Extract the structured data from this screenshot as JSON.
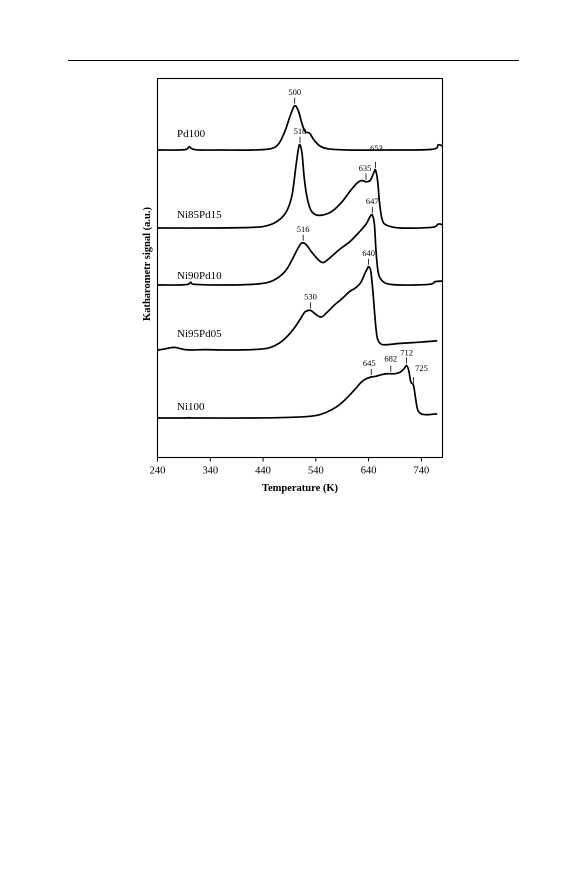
{
  "chart_data": {
    "type": "line",
    "title": "",
    "xlabel": "Temperature (K)",
    "ylabel": "Katharometr signal (a.u.)",
    "xlim": [
      240,
      780
    ],
    "xticks": [
      240,
      340,
      440,
      540,
      640,
      740
    ],
    "xtick_labels": [
      "240",
      "340",
      "440",
      "540",
      "640",
      "740"
    ],
    "grid": false,
    "legend": "none",
    "line_color": "#000000",
    "series": [
      {
        "name": "Pd100",
        "points": [
          [
            240,
            0
          ],
          [
            280,
            0
          ],
          [
            295,
            0.005
          ],
          [
            300,
            0.025
          ],
          [
            306,
            0.008
          ],
          [
            320,
            0
          ],
          [
            360,
            0
          ],
          [
            420,
            0
          ],
          [
            455,
            0.01
          ],
          [
            470,
            0.05
          ],
          [
            482,
            0.15
          ],
          [
            492,
            0.27
          ],
          [
            500,
            0.34
          ],
          [
            507,
            0.3
          ],
          [
            514,
            0.2
          ],
          [
            520,
            0.14
          ],
          [
            528,
            0.13
          ],
          [
            536,
            0.08
          ],
          [
            548,
            0.03
          ],
          [
            565,
            0.008
          ],
          [
            600,
            0
          ],
          [
            680,
            0
          ],
          [
            760,
            0.005
          ],
          [
            772,
            0.04
          ],
          [
            780,
            0.03
          ]
        ],
        "peaks": [
          {
            "t": 500,
            "label": "500"
          }
        ]
      },
      {
        "name": "Ni85Pd15",
        "points": [
          [
            240,
            0
          ],
          [
            330,
            0
          ],
          [
            420,
            0.005
          ],
          [
            450,
            0.02
          ],
          [
            470,
            0.06
          ],
          [
            485,
            0.13
          ],
          [
            495,
            0.25
          ],
          [
            502,
            0.46
          ],
          [
            507,
            0.6
          ],
          [
            510,
            0.63
          ],
          [
            514,
            0.56
          ],
          [
            518,
            0.38
          ],
          [
            523,
            0.24
          ],
          [
            530,
            0.14
          ],
          [
            540,
            0.1
          ],
          [
            555,
            0.1
          ],
          [
            572,
            0.13
          ],
          [
            590,
            0.2
          ],
          [
            605,
            0.28
          ],
          [
            618,
            0.34
          ],
          [
            627,
            0.36
          ],
          [
            635,
            0.35
          ],
          [
            643,
            0.36
          ],
          [
            650,
            0.42
          ],
          [
            653,
            0.44
          ],
          [
            657,
            0.36
          ],
          [
            661,
            0.18
          ],
          [
            666,
            0.06
          ],
          [
            675,
            0.02
          ],
          [
            700,
            0
          ],
          [
            760,
            0.005
          ],
          [
            772,
            0.03
          ],
          [
            780,
            0.025
          ]
        ],
        "peaks": [
          {
            "t": 510,
            "label": "510"
          },
          {
            "t": 635,
            "label": "635"
          },
          {
            "t": 653,
            "label": "653"
          }
        ]
      },
      {
        "name": "Ni90Pd10",
        "points": [
          [
            240,
            0
          ],
          [
            280,
            0
          ],
          [
            298,
            0.005
          ],
          [
            303,
            0.02
          ],
          [
            310,
            0.005
          ],
          [
            360,
            0
          ],
          [
            420,
            0.005
          ],
          [
            450,
            0.02
          ],
          [
            470,
            0.06
          ],
          [
            485,
            0.12
          ],
          [
            496,
            0.2
          ],
          [
            505,
            0.27
          ],
          [
            511,
            0.31
          ],
          [
            516,
            0.32
          ],
          [
            523,
            0.3
          ],
          [
            532,
            0.25
          ],
          [
            545,
            0.19
          ],
          [
            554,
            0.17
          ],
          [
            565,
            0.2
          ],
          [
            585,
            0.27
          ],
          [
            605,
            0.33
          ],
          [
            622,
            0.4
          ],
          [
            635,
            0.46
          ],
          [
            643,
            0.52
          ],
          [
            647,
            0.53
          ],
          [
            651,
            0.46
          ],
          [
            654,
            0.26
          ],
          [
            658,
            0.1
          ],
          [
            664,
            0.04
          ],
          [
            675,
            0.01
          ],
          [
            700,
            0
          ],
          [
            755,
            0.005
          ],
          [
            766,
            0.025
          ],
          [
            780,
            0.03
          ]
        ],
        "peaks": [
          {
            "t": 516,
            "label": "516"
          },
          {
            "t": 647,
            "label": "647"
          }
        ]
      },
      {
        "name": "Ni95Pd05",
        "points": [
          [
            240,
            0
          ],
          [
            250,
            0.005
          ],
          [
            262,
            0.015
          ],
          [
            272,
            0.02
          ],
          [
            282,
            0.012
          ],
          [
            292,
            0.003
          ],
          [
            305,
            0
          ],
          [
            330,
            0.003
          ],
          [
            360,
            0
          ],
          [
            420,
            0.003
          ],
          [
            450,
            0.015
          ],
          [
            470,
            0.05
          ],
          [
            485,
            0.1
          ],
          [
            496,
            0.15
          ],
          [
            505,
            0.2
          ],
          [
            513,
            0.25
          ],
          [
            520,
            0.29
          ],
          [
            530,
            0.3
          ],
          [
            540,
            0.27
          ],
          [
            550,
            0.25
          ],
          [
            560,
            0.28
          ],
          [
            575,
            0.34
          ],
          [
            590,
            0.39
          ],
          [
            603,
            0.44
          ],
          [
            615,
            0.47
          ],
          [
            625,
            0.51
          ],
          [
            633,
            0.58
          ],
          [
            638,
            0.62
          ],
          [
            640,
            0.63
          ],
          [
            644,
            0.6
          ],
          [
            648,
            0.45
          ],
          [
            652,
            0.25
          ],
          [
            656,
            0.1
          ],
          [
            662,
            0.05
          ],
          [
            672,
            0.04
          ],
          [
            700,
            0.05
          ],
          [
            740,
            0.06
          ],
          [
            770,
            0.07
          ]
        ],
        "peaks": [
          {
            "t": 530,
            "label": "530"
          },
          {
            "t": 640,
            "label": "640"
          }
        ]
      },
      {
        "name": "Ni100",
        "points": [
          [
            240,
            0
          ],
          [
            290,
            0
          ],
          [
            300,
            0.004
          ],
          [
            310,
            0
          ],
          [
            420,
            0
          ],
          [
            500,
            0.01
          ],
          [
            540,
            0.03
          ],
          [
            560,
            0.07
          ],
          [
            580,
            0.14
          ],
          [
            595,
            0.22
          ],
          [
            607,
            0.3
          ],
          [
            617,
            0.37
          ],
          [
            625,
            0.43
          ],
          [
            633,
            0.47
          ],
          [
            640,
            0.49
          ],
          [
            645,
            0.5
          ],
          [
            655,
            0.51
          ],
          [
            665,
            0.53
          ],
          [
            675,
            0.54
          ],
          [
            682,
            0.54
          ],
          [
            690,
            0.54
          ],
          [
            700,
            0.56
          ],
          [
            707,
            0.6
          ],
          [
            712,
            0.64
          ],
          [
            716,
            0.58
          ],
          [
            720,
            0.44
          ],
          [
            725,
            0.4
          ],
          [
            729,
            0.24
          ],
          [
            733,
            0.1
          ],
          [
            740,
            0.05
          ],
          [
            750,
            0.04
          ],
          [
            760,
            0.045
          ],
          [
            770,
            0.05
          ]
        ],
        "peaks": [
          {
            "t": 645,
            "label": "645"
          },
          {
            "t": 682,
            "label": "682"
          },
          {
            "t": 712,
            "label": "712"
          },
          {
            "t": 725,
            "label": "725"
          }
        ]
      }
    ]
  }
}
